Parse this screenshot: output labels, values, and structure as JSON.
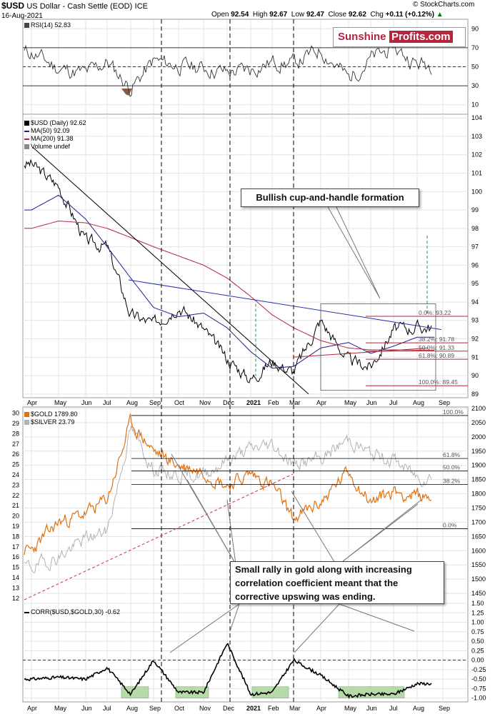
{
  "header": {
    "symbol": "$USD",
    "name": "US Dollar - Cash Settle (EOD)",
    "exchange": "ICE",
    "date": "16-Aug-2021",
    "open_label": "Open",
    "open": "92.54",
    "high_label": "High",
    "high": "92.67",
    "low_label": "Low",
    "low": "92.47",
    "close_label": "Close",
    "close": "92.62",
    "chg_label": "Chg",
    "chg": "+0.11 (+0.12%)",
    "chg_icon": "up-triangle-icon",
    "copyright": "© StockCharts.com"
  },
  "logo": {
    "part1": "Sunshine",
    "part2": "Profits.com"
  },
  "annotations": {
    "cup_handle": "Bullish cup-and-handle formation",
    "gold_rally": [
      "Small rally in gold along with increasing",
      "correlation coefficient meant that the",
      "corrective upswing was ending."
    ]
  },
  "panels": {
    "rsi": {
      "label": "RSI(14) 52.83"
    },
    "usd": {
      "label": "$USD (Daily) 92.62",
      "ma50": "MA(50) 92.09",
      "ma200": "MA(200) 91.38",
      "volume": "Volume undef"
    },
    "gold": {
      "label": "$GOLD 1789.80",
      "silver": "$SILVER 23.79"
    },
    "corr": {
      "label": "CORR($USD,$GOLD,30) -0.62"
    }
  },
  "colors": {
    "usd_price": "#000000",
    "ma50": "#1f1f8c",
    "ma200": "#b3263d",
    "trend": "#2533a8",
    "gold": "#e07010",
    "silver": "#aeb4b9",
    "corr": "#000000",
    "corr_fill": "#b7dba8",
    "rsi_fill": "#8c5a4a",
    "fib_gold": "#000000",
    "fib_usd": "#b3263d",
    "support_line": "#d03040",
    "vline": "#000000",
    "green_dash": "#2a8a4a"
  },
  "chart_data": [
    {
      "type": "line",
      "title": "RSI(14) 52.83",
      "x_ticks": [
        "Apr",
        "May",
        "Jun",
        "Jul",
        "Aug",
        "Sep",
        "Oct",
        "Nov",
        "Dec",
        "2021",
        "Feb",
        "Mar",
        "Apr",
        "May",
        "Jun",
        "Jul",
        "Aug",
        "Sep"
      ],
      "y_ticks": [
        10,
        30,
        50,
        70,
        90
      ],
      "ylim": [
        0,
        100
      ],
      "reference_lines": [
        30,
        50,
        70
      ],
      "series": [
        {
          "x": [
            "Apr",
            "May",
            "Jun",
            "Jul",
            "Aug",
            "Sep",
            "Oct",
            "Nov",
            "Dec",
            "2021",
            "Feb",
            "Mar",
            "Apr",
            "May",
            "Jun",
            "Jul",
            "Aug"
          ],
          "values": [
            65,
            48,
            43,
            55,
            27,
            56,
            51,
            49,
            44,
            47,
            55,
            53,
            68,
            38,
            58,
            70,
            53
          ]
        }
      ]
    },
    {
      "type": "line",
      "title": "$USD (Daily) 92.62",
      "x_ticks": [
        "Apr",
        "May",
        "Jun",
        "Jul",
        "Aug",
        "Sep",
        "Oct",
        "Nov",
        "Dec",
        "2021",
        "Feb",
        "Mar",
        "Apr",
        "May",
        "Jun",
        "Jul",
        "Aug",
        "Sep"
      ],
      "y_ticks": [
        89,
        90,
        91,
        92,
        93,
        94,
        95,
        96,
        97,
        98,
        99,
        100,
        101,
        102,
        103,
        104
      ],
      "ylim": [
        88.8,
        104.2
      ],
      "series": [
        {
          "name": "$USD",
          "x": [
            "Apr",
            "May",
            "Jun",
            "Jul",
            "Aug",
            "Sep",
            "Oct",
            "Nov",
            "Dec",
            "2021",
            "Feb",
            "Mar",
            "Apr",
            "May",
            "Jun",
            "Jul",
            "Aug"
          ],
          "values": [
            101.5,
            100.3,
            97.3,
            97.0,
            93.3,
            92.8,
            93.8,
            92.5,
            90.9,
            89.8,
            90.8,
            90.2,
            93.0,
            90.8,
            90.5,
            92.5,
            92.62
          ]
        },
        {
          "name": "MA(50)",
          "x": [
            "Apr",
            "May",
            "Jun",
            "Jul",
            "Aug",
            "Sep",
            "Oct",
            "Nov",
            "Dec",
            "2021",
            "Feb",
            "Mar",
            "Apr",
            "May",
            "Jun",
            "Jul",
            "Aug"
          ],
          "values": [
            99.0,
            99.8,
            98.5,
            97.0,
            95.3,
            93.7,
            93.2,
            93.4,
            92.6,
            91.3,
            90.4,
            90.5,
            91.5,
            91.8,
            91.2,
            91.6,
            92.09
          ]
        },
        {
          "name": "MA(200)",
          "x": [
            "Apr",
            "May",
            "Jun",
            "Jul",
            "Aug",
            "Sep",
            "Oct",
            "Nov",
            "Dec",
            "2021",
            "Feb",
            "Mar",
            "Apr",
            "May",
            "Jun",
            "Jul",
            "Aug"
          ],
          "values": [
            98.0,
            98.4,
            98.3,
            98.0,
            97.5,
            97.0,
            96.5,
            96.0,
            95.3,
            94.3,
            93.3,
            92.6,
            91.9,
            91.5,
            91.4,
            91.4,
            91.38
          ]
        }
      ],
      "fib_levels": [
        {
          "label": "0.0%: 93.22",
          "value": 93.22
        },
        {
          "label": "38.2%: 91.78",
          "value": 91.78
        },
        {
          "label": "50.0%: 91.33",
          "value": 91.33
        },
        {
          "label": "61.8%: 90.89",
          "value": 90.89
        },
        {
          "label": "100.0%: 89.45",
          "value": 89.45
        }
      ]
    },
    {
      "type": "line",
      "title": "$GOLD 1789.80",
      "x_ticks": [
        "Apr",
        "May",
        "Jun",
        "Jul",
        "Aug",
        "Sep",
        "Oct",
        "Nov",
        "Dec",
        "2021",
        "Feb",
        "Mar",
        "Apr",
        "May",
        "Jun",
        "Jul",
        "Aug",
        "Sep"
      ],
      "y_ticks_left": [
        12,
        13,
        14,
        15,
        16,
        17,
        18,
        19,
        20,
        21,
        22,
        23,
        24,
        25,
        26,
        27,
        28,
        29,
        30
      ],
      "y_ticks_right": [
        1450,
        1500,
        1550,
        1600,
        1650,
        1700,
        1750,
        1800,
        1850,
        1900,
        1950,
        2000,
        2050,
        2100
      ],
      "ylim_right": [
        1415,
        2105
      ],
      "series": [
        {
          "name": "$GOLD",
          "x": [
            "Apr",
            "May",
            "Jun",
            "Jul",
            "Aug",
            "Sep",
            "Oct",
            "Nov",
            "Dec",
            "2021",
            "Feb",
            "Mar",
            "Apr",
            "May",
            "Jun",
            "Jul",
            "Aug"
          ],
          "values": [
            1600,
            1700,
            1730,
            1780,
            2050,
            1950,
            1900,
            1880,
            1830,
            1870,
            1830,
            1710,
            1770,
            1880,
            1770,
            1810,
            1789.8
          ]
        },
        {
          "name": "$SILVER",
          "x": [
            "Apr",
            "May",
            "Jun",
            "Jul",
            "Aug",
            "Sep",
            "Oct",
            "Nov",
            "Dec",
            "2021",
            "Feb",
            "Mar",
            "Apr",
            "May",
            "Jun",
            "Jul",
            "Aug"
          ],
          "values": [
            15.0,
            16.0,
            17.8,
            18.5,
            28.5,
            24.5,
            24.0,
            24.0,
            25.5,
            26.5,
            27.0,
            25.0,
            25.5,
            27.5,
            26.0,
            25.5,
            23.79
          ]
        }
      ],
      "fib_levels": [
        {
          "label": "100.0%",
          "value": 2075
        },
        {
          "label": "61.8%",
          "value": 1924
        },
        {
          "label": "50.0%",
          "value": 1880
        },
        {
          "label": "38.2%",
          "value": 1833
        },
        {
          "label": "0.0%",
          "value": 1677
        }
      ]
    },
    {
      "type": "area",
      "title": "CORR($USD,$GOLD,30) -0.62",
      "x_ticks": [
        "Apr",
        "May",
        "Jun",
        "Jul",
        "Aug",
        "Sep",
        "Oct",
        "Nov",
        "Dec",
        "2021",
        "Feb",
        "Mar",
        "Apr",
        "May",
        "Jun",
        "Jul",
        "Aug",
        "Sep"
      ],
      "y_ticks": [
        -1.0,
        -0.75,
        -0.5,
        -0.25,
        0.0,
        0.25,
        0.5,
        0.75,
        1.0,
        1.25,
        1.5
      ],
      "ylim": [
        -1.1,
        1.5
      ],
      "reference_lines": [
        0
      ],
      "series": [
        {
          "name": "CORR($USD,$GOLD,30)",
          "x": [
            "Apr",
            "May",
            "Jun",
            "Jul",
            "Aug",
            "Sep",
            "Oct",
            "Nov",
            "Dec",
            "2021",
            "Feb",
            "Mar",
            "Apr",
            "May",
            "Jun",
            "Jul",
            "Aug"
          ],
          "values": [
            -0.5,
            -0.45,
            -0.5,
            -0.2,
            -0.9,
            0.0,
            -0.85,
            -0.85,
            0.45,
            -0.9,
            -0.85,
            0.0,
            -0.4,
            -0.95,
            -0.9,
            -0.9,
            -0.62
          ]
        }
      ]
    }
  ]
}
